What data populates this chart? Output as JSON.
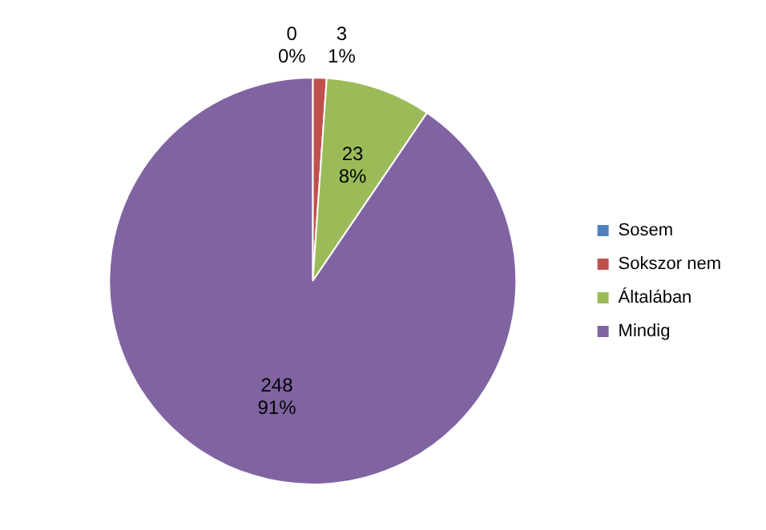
{
  "chart_data": {
    "type": "pie",
    "categories": [
      "Sosem",
      "Sokszor nem",
      "Általában",
      "Mindig"
    ],
    "values": [
      0,
      3,
      23,
      248
    ],
    "colors": [
      "#4f81bd",
      "#c0504d",
      "#9bbb59",
      "#8064a2"
    ],
    "value_labels": [
      "0\n0%",
      "3\n1%",
      "23\n8%",
      "248\n91%"
    ],
    "legend": "right"
  }
}
